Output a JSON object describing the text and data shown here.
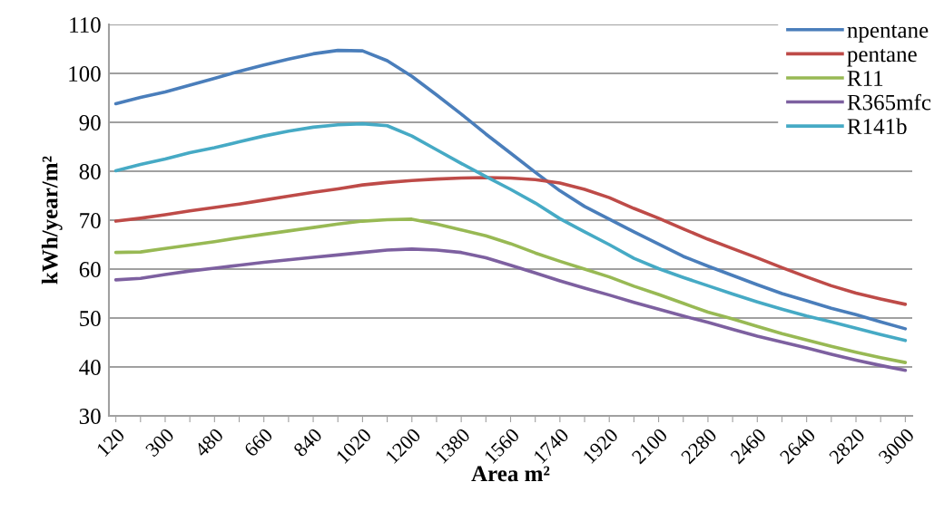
{
  "chart_data": {
    "type": "line",
    "xlabel": "Area m²",
    "ylabel": "kWh/year/m²",
    "categories": [
      "120",
      null,
      "300",
      null,
      "480",
      null,
      "660",
      null,
      "840",
      null,
      "1020",
      null,
      "1200",
      null,
      "1380",
      null,
      "1560",
      null,
      "1740",
      null,
      "1920",
      null,
      "2100",
      null,
      "2280",
      null,
      "2460",
      null,
      "2640",
      null,
      "2820",
      null,
      "3000"
    ],
    "series": [
      {
        "name": "npentane",
        "color": "#4a7ebb",
        "values": [
          93.8,
          95.1,
          96.2,
          97.6,
          99,
          100.4,
          101.7,
          102.9,
          104,
          104.7,
          104.6,
          102.6,
          99.4,
          95.6,
          91.7,
          87.6,
          83.7,
          79.8,
          76,
          72.8,
          70.2,
          67.6,
          65.1,
          62.6,
          60.6,
          58.7,
          56.8,
          55,
          53.5,
          52,
          50.7,
          49.2,
          47.8
        ]
      },
      {
        "name": "pentane",
        "color": "#be4b48",
        "values": [
          69.8,
          70.4,
          71.1,
          71.9,
          72.6,
          73.3,
          74.1,
          74.9,
          75.7,
          76.4,
          77.2,
          77.7,
          78.1,
          78.4,
          78.6,
          78.7,
          78.6,
          78.3,
          77.6,
          76.3,
          74.6,
          72.4,
          70.4,
          68.2,
          66.1,
          64.2,
          62.3,
          60.3,
          58.4,
          56.6,
          55.1,
          53.9,
          52.8
        ]
      },
      {
        "name": "R11",
        "color": "#98b954",
        "values": [
          63.4,
          63.5,
          64.2,
          64.9,
          65.6,
          66.4,
          67.1,
          67.8,
          68.5,
          69.2,
          69.8,
          70.1,
          70.2,
          69.2,
          68,
          66.8,
          65.2,
          63.3,
          61.6,
          60,
          58.4,
          56.5,
          54.8,
          53,
          51.2,
          49.8,
          48.3,
          46.8,
          45.5,
          44.2,
          43,
          41.9,
          40.9
        ]
      },
      {
        "name": "R365mfc",
        "color": "#7d60a0",
        "values": [
          57.8,
          58.1,
          58.9,
          59.6,
          60.2,
          60.8,
          61.4,
          61.9,
          62.4,
          62.9,
          63.4,
          63.9,
          64.1,
          63.9,
          63.4,
          62.3,
          60.8,
          59.2,
          57.6,
          56.1,
          54.7,
          53.2,
          51.8,
          50.4,
          49.1,
          47.7,
          46.3,
          45.1,
          43.9,
          42.6,
          41.4,
          40.3,
          39.3
        ]
      },
      {
        "name": "R141b",
        "color": "#46aac5",
        "values": [
          80.1,
          81.4,
          82.5,
          83.8,
          84.8,
          86,
          87.2,
          88.2,
          89,
          89.5,
          89.7,
          89.3,
          87.2,
          84.4,
          81.6,
          78.9,
          76.3,
          73.5,
          70.3,
          67.6,
          65,
          62.2,
          60.1,
          58.3,
          56.6,
          54.9,
          53.3,
          51.8,
          50.4,
          49.2,
          47.9,
          46.6,
          45.4
        ]
      }
    ],
    "ylim": [
      30,
      110
    ],
    "yticks": [
      30,
      40,
      50,
      60,
      70,
      80,
      90,
      100,
      110
    ],
    "grid": "y",
    "legend": "top right",
    "marker": "none",
    "line_style": "solid"
  }
}
